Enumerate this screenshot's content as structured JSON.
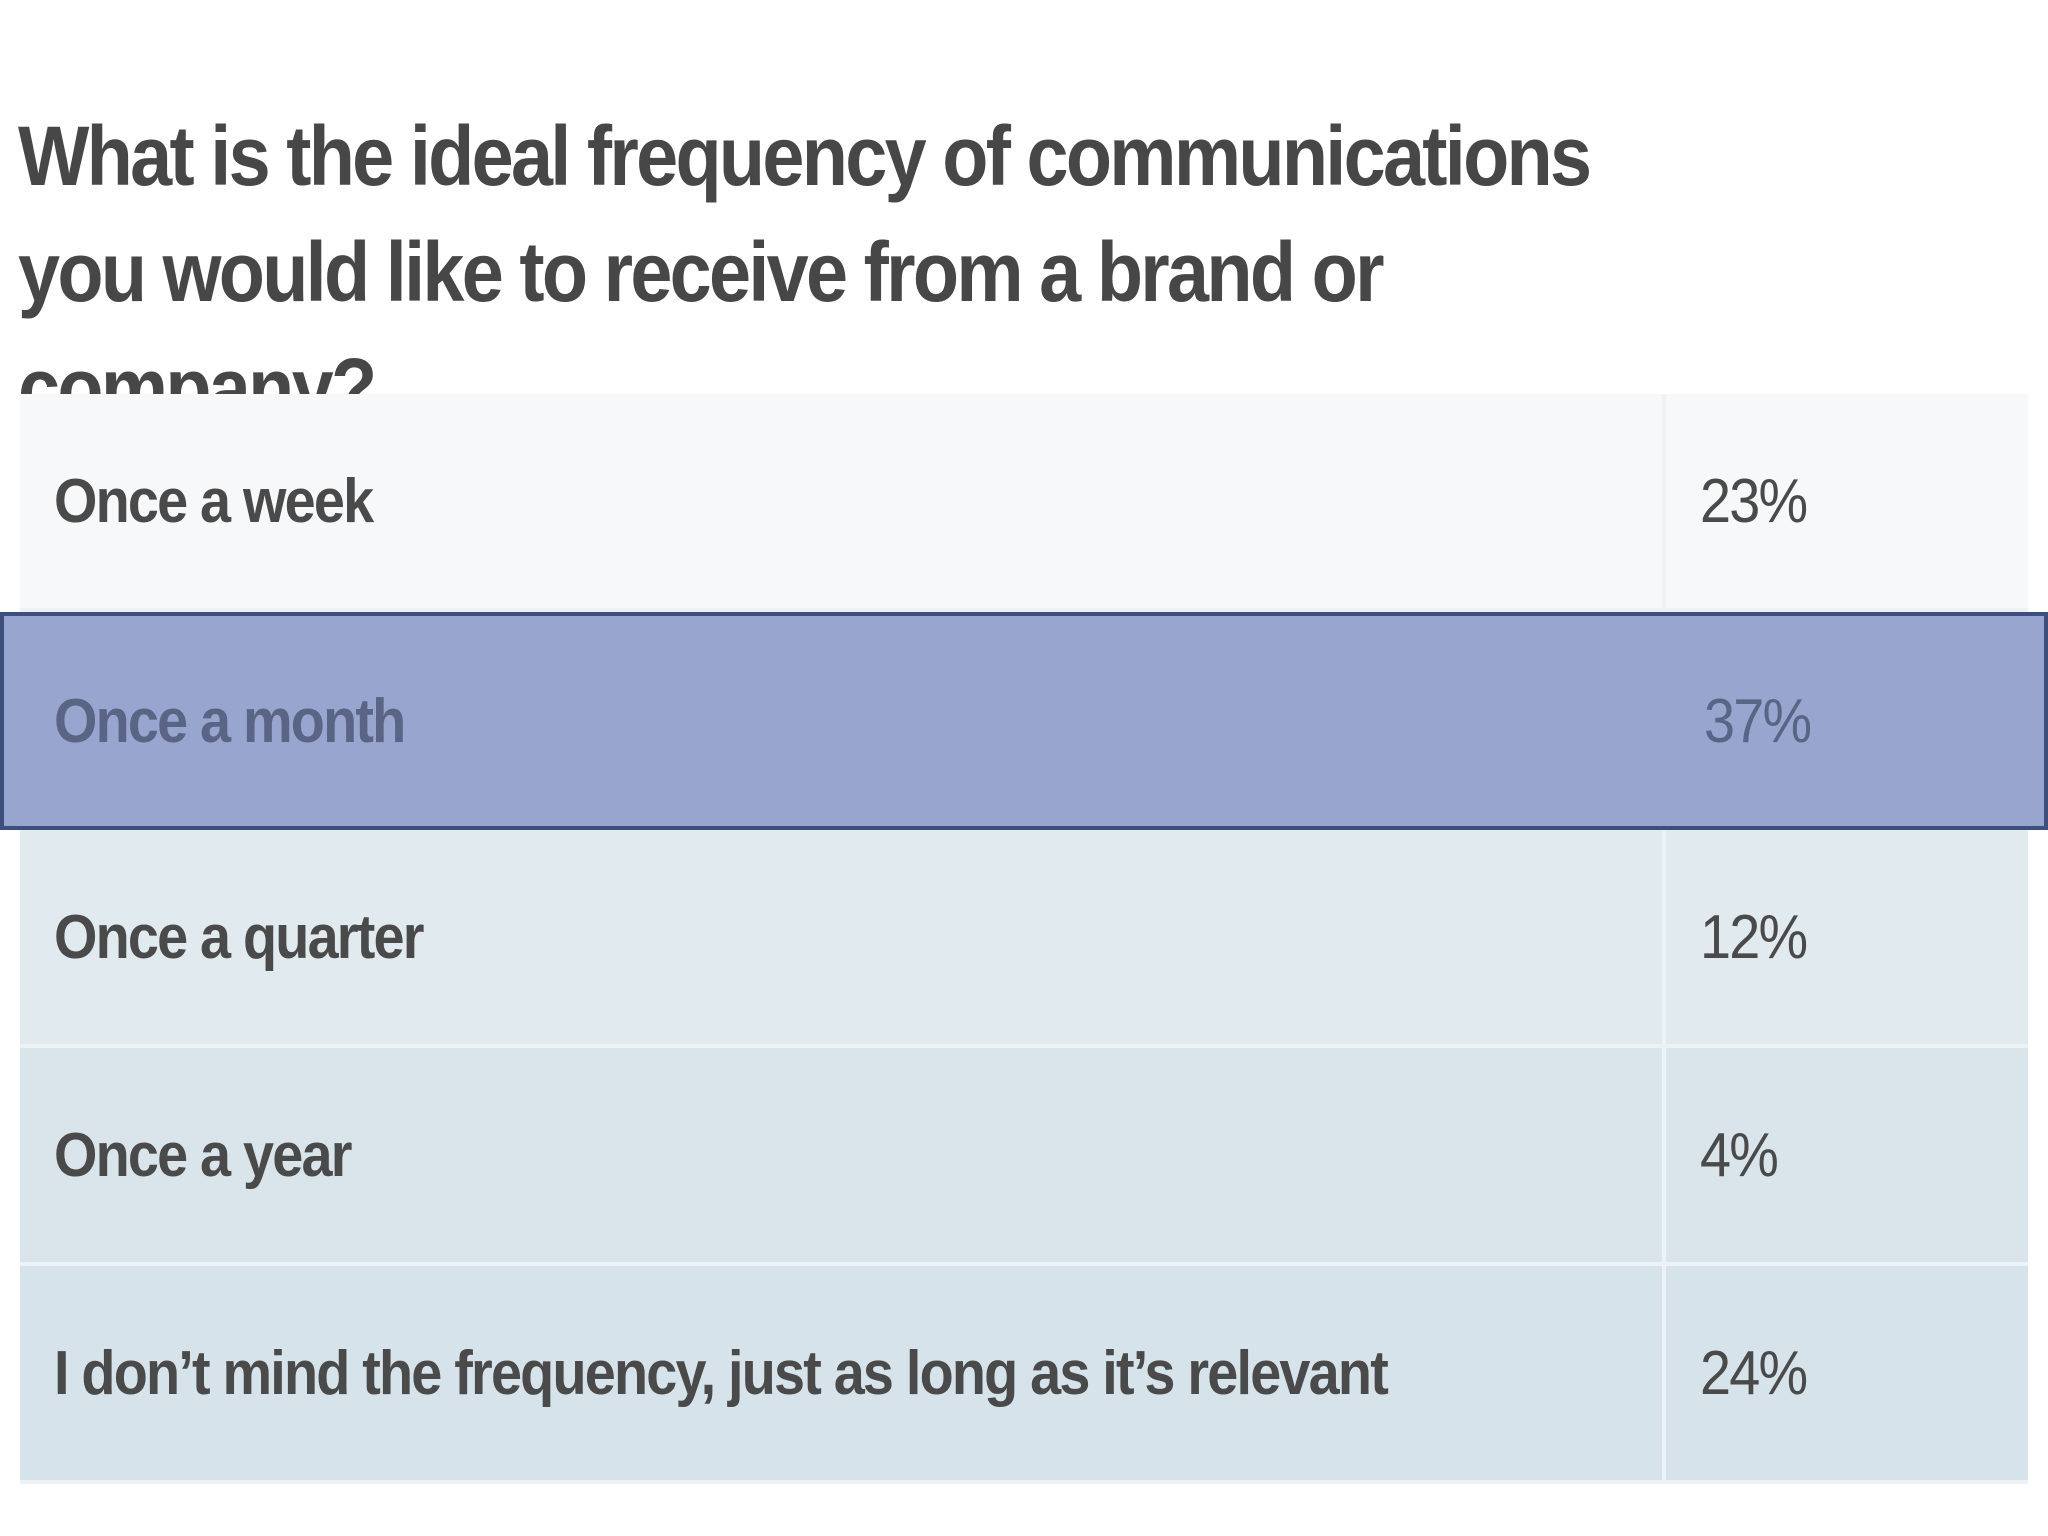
{
  "chart_data": {
    "type": "table",
    "title": "What is the ideal frequency of communications you would like to receive from a brand or company?",
    "rows": [
      {
        "label": "Once a week",
        "value": "23%",
        "percent": 23
      },
      {
        "label": "Once a month",
        "value": "37%",
        "percent": 37,
        "highlighted": true
      },
      {
        "label": "Once a quarter",
        "value": "12%",
        "percent": 12
      },
      {
        "label": "Once a year",
        "value": "4%",
        "percent": 4
      },
      {
        "label": "I don’t mind the frequency, just as long as it’s relevant",
        "value": "24%",
        "percent": 24
      }
    ]
  },
  "colors": {
    "row_backgrounds": [
      "#f7f8f9",
      "#98a6cf",
      "#e1eaef",
      "#d9e5eb",
      "#d6e3ea"
    ],
    "highlight_border": "#3c4f7e",
    "text": "#4a4a4a",
    "highlight_text": "#5a6585"
  }
}
